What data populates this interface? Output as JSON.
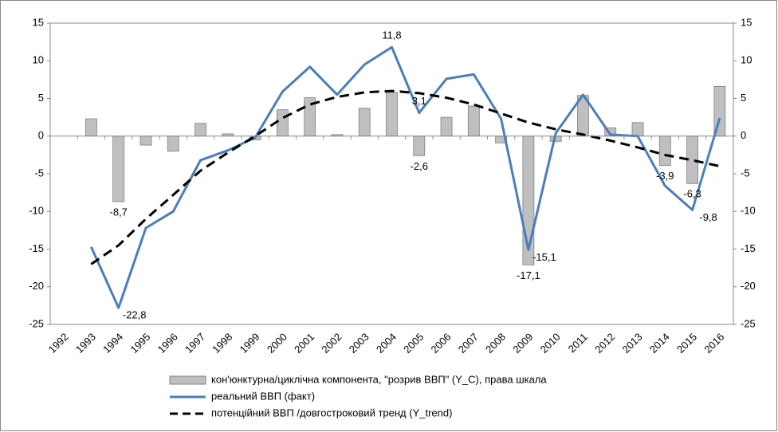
{
  "chart_data": {
    "type": "combo",
    "categories": [
      "1992",
      "1993",
      "1994",
      "1995",
      "1996",
      "1997",
      "1998",
      "1999",
      "2000",
      "2001",
      "2002",
      "2003",
      "2004",
      "2005",
      "2006",
      "2007",
      "2008",
      "2009",
      "2010",
      "2011",
      "2012",
      "2013",
      "2014",
      "2015",
      "2016"
    ],
    "ylim": [
      -25,
      15
    ],
    "yticks": [
      -25,
      -20,
      -15,
      -10,
      -5,
      0,
      5,
      10,
      15
    ],
    "y2lim": [
      -25,
      15
    ],
    "y2ticks": [
      -25,
      -20,
      -15,
      -10,
      -5,
      0,
      5,
      10,
      15
    ],
    "grid": false,
    "legend": "bottom",
    "series": [
      {
        "name": "кон'юнктурна/циклічна компонента, \"розрив ВВП\" (Y_C), права шкала",
        "type": "bar",
        "axis": "y2",
        "color": "#bfbfbf",
        "values": [
          null,
          2.3,
          -8.7,
          -1.2,
          -2.0,
          1.7,
          0.3,
          -0.5,
          3.5,
          5.1,
          0.2,
          3.7,
          5.8,
          -2.6,
          2.5,
          4.0,
          -0.9,
          -17.1,
          -0.7,
          5.4,
          1.1,
          1.8,
          -3.9,
          -6.3,
          6.6
        ],
        "value_labels": [
          null,
          null,
          "-8,7",
          null,
          null,
          null,
          null,
          null,
          null,
          null,
          null,
          null,
          null,
          "-2,6",
          null,
          null,
          null,
          "-17,1",
          null,
          null,
          null,
          null,
          "-3,9",
          "-6,3",
          null
        ]
      },
      {
        "name": "реальний ВВП (факт)",
        "type": "line",
        "color": "#4a7ebb",
        "values": [
          null,
          -14.7,
          -22.8,
          -12.2,
          -10.0,
          -3.2,
          -1.9,
          -0.2,
          5.9,
          9.2,
          5.5,
          9.5,
          11.8,
          3.1,
          7.6,
          8.2,
          2.3,
          -15.1,
          0.4,
          5.5,
          0.2,
          0.0,
          -6.6,
          -9.8,
          2.4
        ],
        "value_labels": [
          null,
          null,
          "-22,8",
          null,
          null,
          null,
          null,
          null,
          null,
          null,
          null,
          null,
          "11,8",
          "3,1",
          null,
          null,
          null,
          "-15,1",
          null,
          null,
          null,
          null,
          null,
          "-9,8",
          null
        ]
      },
      {
        "name": "потенційний ВВП /довгостроковий тренд (Y_trend)",
        "type": "dashed-line",
        "color": "#000000",
        "values": [
          null,
          -17.0,
          -14.5,
          -11.0,
          -7.8,
          -4.6,
          -2.2,
          0.0,
          2.4,
          4.2,
          5.2,
          5.8,
          6.0,
          5.7,
          5.1,
          4.2,
          3.0,
          1.8,
          0.9,
          0.2,
          -0.6,
          -1.5,
          -2.5,
          -3.2,
          -4.0
        ]
      }
    ]
  }
}
